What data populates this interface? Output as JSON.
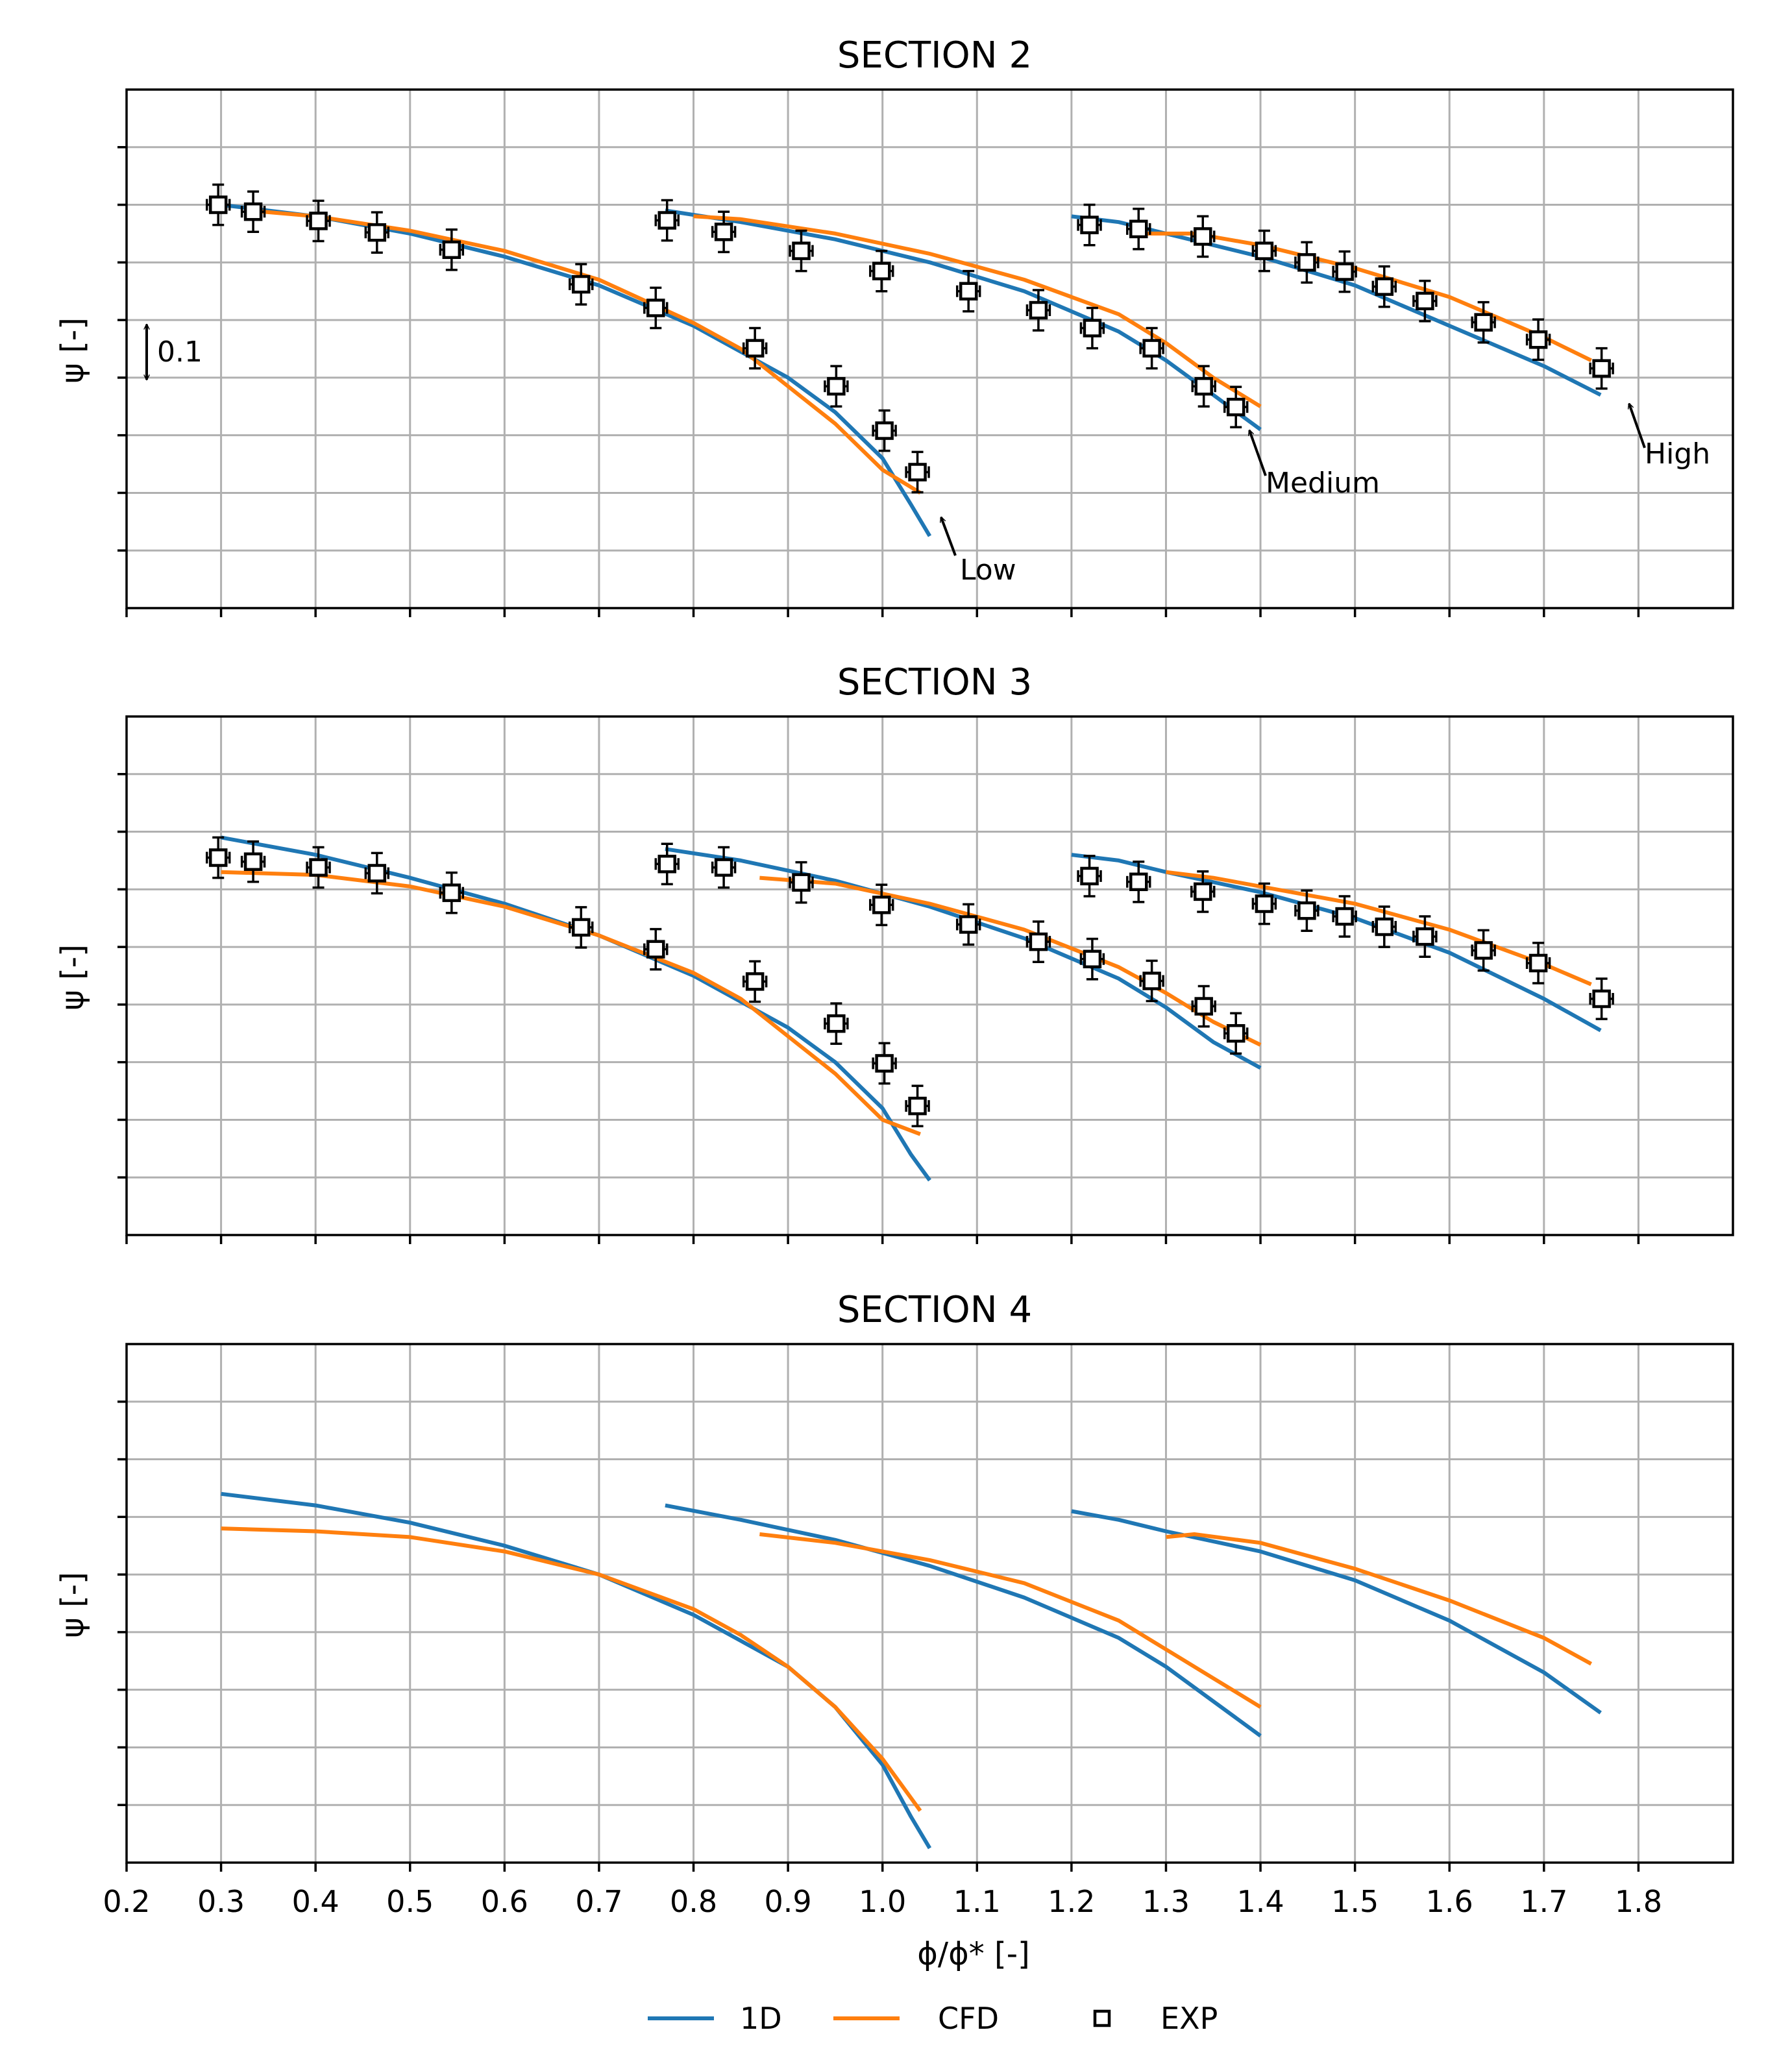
{
  "colors": {
    "oned": "#1f77b4",
    "cfd": "#ff7f0e",
    "exp": "#000000"
  },
  "shared_axes": {
    "xlabel": "ϕ/ϕ* [-]",
    "ylabel": "ψ [-]",
    "x_ticks": [
      "0.2",
      "0.3",
      "0.4",
      "0.5",
      "0.6",
      "0.7",
      "0.8",
      "0.9",
      "1.0",
      "1.1",
      "1.2",
      "1.3",
      "1.4",
      "1.5",
      "1.6",
      "1.7",
      "1.8"
    ],
    "scale_annotation": "0.1"
  },
  "legend": [
    {
      "key": "oned",
      "label": "1D",
      "kind": "line"
    },
    {
      "key": "cfd",
      "label": "CFD",
      "kind": "line"
    },
    {
      "key": "exp",
      "label": "EXP",
      "kind": "marker"
    }
  ],
  "chart_data": [
    {
      "type": "line",
      "title": "SECTION 2",
      "xlabel": "",
      "ylabel": "ψ [-]",
      "xlim": [
        0.2,
        1.9
      ],
      "ylim": [
        0,
        0.9
      ],
      "grid": true,
      "speed_labels": [
        {
          "text": "Low",
          "x": 1.04,
          "y": 0.16
        },
        {
          "text": "Medium",
          "x": 1.38,
          "y": 0.31
        },
        {
          "text": "High",
          "x": 1.78,
          "y": 0.36
        }
      ],
      "series": [
        {
          "name": "1D",
          "speed": "Low",
          "x": [
            0.3,
            0.4,
            0.5,
            0.6,
            0.7,
            0.8,
            0.9,
            0.95,
            1.0,
            1.03,
            1.05
          ],
          "y": [
            0.7,
            0.68,
            0.65,
            0.61,
            0.56,
            0.49,
            0.4,
            0.34,
            0.26,
            0.18,
            0.125
          ]
        },
        {
          "name": "CFD",
          "speed": "Low",
          "x": [
            0.33,
            0.4,
            0.5,
            0.6,
            0.7,
            0.8,
            0.85,
            0.9,
            0.95,
            1.0,
            1.04
          ],
          "y": [
            0.69,
            0.68,
            0.655,
            0.62,
            0.57,
            0.495,
            0.45,
            0.385,
            0.32,
            0.24,
            0.2
          ]
        },
        {
          "name": "1D",
          "speed": "Medium",
          "x": [
            0.77,
            0.85,
            0.95,
            1.05,
            1.15,
            1.25,
            1.3,
            1.35,
            1.4
          ],
          "y": [
            0.69,
            0.67,
            0.64,
            0.6,
            0.55,
            0.48,
            0.43,
            0.37,
            0.31
          ]
        },
        {
          "name": "CFD",
          "speed": "Medium",
          "x": [
            0.8,
            0.85,
            0.95,
            1.05,
            1.15,
            1.25,
            1.3,
            1.35,
            1.4
          ],
          "y": [
            0.68,
            0.675,
            0.65,
            0.615,
            0.57,
            0.51,
            0.46,
            0.4,
            0.35
          ]
        },
        {
          "name": "1D",
          "speed": "High",
          "x": [
            1.2,
            1.25,
            1.3,
            1.4,
            1.5,
            1.6,
            1.7,
            1.76
          ],
          "y": [
            0.68,
            0.67,
            0.65,
            0.61,
            0.56,
            0.49,
            0.42,
            0.37
          ]
        },
        {
          "name": "CFD",
          "speed": "High",
          "x": [
            1.28,
            1.33,
            1.4,
            1.5,
            1.6,
            1.7,
            1.75
          ],
          "y": [
            0.65,
            0.65,
            0.63,
            0.59,
            0.54,
            0.47,
            0.43
          ]
        },
        {
          "name": "EXP",
          "marker": "square",
          "x": [
            0.297,
            0.334,
            0.403,
            0.465,
            0.544,
            0.681,
            0.76,
            0.865,
            0.951,
            1.002,
            1.037,
            0.772,
            0.832,
            0.914,
            0.999,
            1.091,
            1.165,
            1.222,
            1.285,
            1.34,
            1.374,
            1.219,
            1.271,
            1.339,
            1.404,
            1.449,
            1.489,
            1.531,
            1.574,
            1.636,
            1.694,
            1.761
          ],
          "y": [
            0.7,
            0.688,
            0.672,
            0.652,
            0.622,
            0.562,
            0.521,
            0.451,
            0.385,
            0.308,
            0.236,
            0.673,
            0.653,
            0.62,
            0.585,
            0.55,
            0.517,
            0.486,
            0.451,
            0.385,
            0.349,
            0.665,
            0.658,
            0.645,
            0.62,
            0.6,
            0.584,
            0.558,
            0.533,
            0.496,
            0.466,
            0.416
          ],
          "x_err": 0.012,
          "y_err": 0.035
        }
      ]
    },
    {
      "type": "line",
      "title": "SECTION 3",
      "xlabel": "",
      "ylabel": "ψ [-]",
      "xlim": [
        0.2,
        1.9
      ],
      "ylim": [
        0,
        0.9
      ],
      "grid": true,
      "series": [
        {
          "name": "1D",
          "speed": "Low",
          "x": [
            0.3,
            0.4,
            0.5,
            0.6,
            0.7,
            0.8,
            0.9,
            0.95,
            1.0,
            1.03,
            1.05
          ],
          "y": [
            0.69,
            0.66,
            0.62,
            0.575,
            0.52,
            0.45,
            0.36,
            0.3,
            0.22,
            0.14,
            0.095
          ]
        },
        {
          "name": "CFD",
          "speed": "Low",
          "x": [
            0.3,
            0.4,
            0.5,
            0.6,
            0.7,
            0.8,
            0.85,
            0.9,
            0.95,
            1.0,
            1.04
          ],
          "y": [
            0.63,
            0.625,
            0.605,
            0.57,
            0.52,
            0.455,
            0.41,
            0.345,
            0.28,
            0.2,
            0.175
          ]
        },
        {
          "name": "1D",
          "speed": "Medium",
          "x": [
            0.77,
            0.85,
            0.95,
            1.05,
            1.15,
            1.25,
            1.3,
            1.35,
            1.4
          ],
          "y": [
            0.67,
            0.65,
            0.615,
            0.57,
            0.515,
            0.445,
            0.395,
            0.335,
            0.29
          ]
        },
        {
          "name": "CFD",
          "speed": "Medium",
          "x": [
            0.87,
            0.95,
            1.05,
            1.15,
            1.25,
            1.3,
            1.35,
            1.4
          ],
          "y": [
            0.62,
            0.61,
            0.575,
            0.53,
            0.465,
            0.42,
            0.37,
            0.33
          ]
        },
        {
          "name": "1D",
          "speed": "High",
          "x": [
            1.2,
            1.25,
            1.3,
            1.4,
            1.5,
            1.6,
            1.7,
            1.76
          ],
          "y": [
            0.66,
            0.65,
            0.63,
            0.595,
            0.55,
            0.49,
            0.41,
            0.355
          ]
        },
        {
          "name": "CFD",
          "speed": "High",
          "x": [
            1.3,
            1.35,
            1.4,
            1.5,
            1.6,
            1.7,
            1.75
          ],
          "y": [
            0.63,
            0.62,
            0.605,
            0.575,
            0.53,
            0.47,
            0.435
          ]
        },
        {
          "name": "EXP",
          "marker": "square",
          "x": [
            0.297,
            0.334,
            0.403,
            0.465,
            0.544,
            0.681,
            0.76,
            0.865,
            0.951,
            1.002,
            1.037,
            0.772,
            0.832,
            0.914,
            0.999,
            1.091,
            1.165,
            1.222,
            1.285,
            1.34,
            1.374,
            1.219,
            1.271,
            1.339,
            1.404,
            1.449,
            1.489,
            1.531,
            1.574,
            1.636,
            1.694,
            1.761
          ],
          "y": [
            0.655,
            0.648,
            0.638,
            0.628,
            0.594,
            0.534,
            0.496,
            0.44,
            0.367,
            0.298,
            0.224,
            0.644,
            0.638,
            0.612,
            0.573,
            0.539,
            0.509,
            0.479,
            0.441,
            0.397,
            0.35,
            0.623,
            0.613,
            0.596,
            0.575,
            0.563,
            0.553,
            0.535,
            0.518,
            0.494,
            0.472,
            0.41
          ],
          "x_err": 0.012,
          "y_err": 0.035
        }
      ]
    },
    {
      "type": "line",
      "title": "SECTION 4",
      "xlabel": "ϕ/ϕ* [-]",
      "ylabel": "ψ [-]",
      "xlim": [
        0.2,
        1.9
      ],
      "ylim": [
        0,
        0.9
      ],
      "grid": true,
      "series": [
        {
          "name": "1D",
          "speed": "Low",
          "x": [
            0.3,
            0.4,
            0.5,
            0.6,
            0.7,
            0.8,
            0.9,
            0.95,
            1.0,
            1.03,
            1.05
          ],
          "y": [
            0.64,
            0.62,
            0.59,
            0.55,
            0.5,
            0.43,
            0.34,
            0.27,
            0.17,
            0.08,
            0.025
          ]
        },
        {
          "name": "CFD",
          "speed": "Low",
          "x": [
            0.3,
            0.4,
            0.5,
            0.6,
            0.7,
            0.8,
            0.85,
            0.9,
            0.95,
            1.0,
            1.04
          ],
          "y": [
            0.58,
            0.575,
            0.565,
            0.54,
            0.5,
            0.44,
            0.395,
            0.34,
            0.27,
            0.18,
            0.09
          ]
        },
        {
          "name": "1D",
          "speed": "Medium",
          "x": [
            0.77,
            0.85,
            0.95,
            1.05,
            1.15,
            1.25,
            1.3,
            1.35,
            1.4
          ],
          "y": [
            0.62,
            0.595,
            0.56,
            0.515,
            0.46,
            0.39,
            0.34,
            0.28,
            0.22
          ]
        },
        {
          "name": "CFD",
          "speed": "Medium",
          "x": [
            0.87,
            0.95,
            1.05,
            1.15,
            1.25,
            1.3,
            1.35,
            1.4
          ],
          "y": [
            0.57,
            0.555,
            0.525,
            0.485,
            0.42,
            0.37,
            0.32,
            0.27
          ]
        },
        {
          "name": "1D",
          "speed": "High",
          "x": [
            1.2,
            1.25,
            1.3,
            1.4,
            1.5,
            1.6,
            1.7,
            1.76
          ],
          "y": [
            0.61,
            0.595,
            0.575,
            0.54,
            0.49,
            0.42,
            0.33,
            0.26
          ]
        },
        {
          "name": "CFD",
          "speed": "High",
          "x": [
            1.3,
            1.33,
            1.4,
            1.5,
            1.6,
            1.7,
            1.75
          ],
          "y": [
            0.565,
            0.57,
            0.555,
            0.51,
            0.455,
            0.39,
            0.345
          ]
        }
      ]
    }
  ]
}
